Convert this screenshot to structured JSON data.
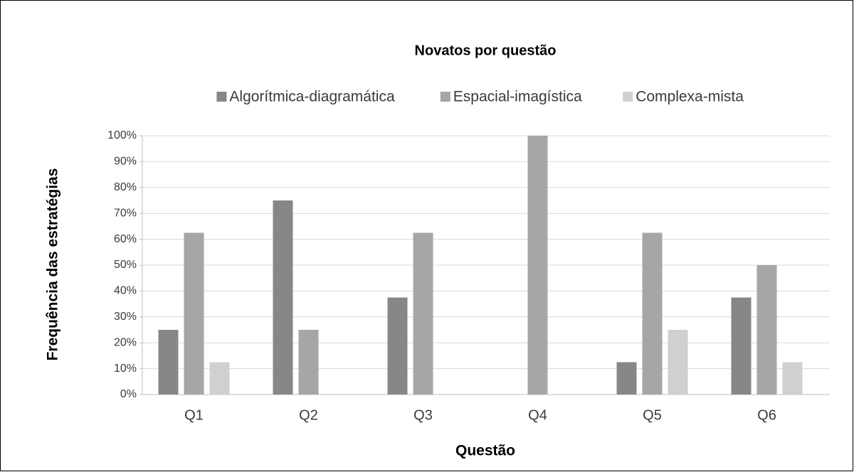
{
  "chart_data": {
    "type": "bar",
    "title": "Novatos por questão",
    "x_label": "Questão",
    "y_label": "Frequência das estratégias",
    "categories": [
      "Q1",
      "Q2",
      "Q3",
      "Q4",
      "Q5",
      "Q6"
    ],
    "series": [
      {
        "name": "Algorítmica-diagramática",
        "color": "#878787",
        "values": [
          25,
          75,
          37.5,
          0,
          12.5,
          37.5
        ]
      },
      {
        "name": "Espacial-imagística",
        "color": "#a6a6a6",
        "values": [
          62.5,
          25,
          62.5,
          100,
          62.5,
          50
        ]
      },
      {
        "name": "Complexa-mista",
        "color": "#d0d0d0",
        "values": [
          12.5,
          0,
          0,
          0,
          25,
          12.5
        ]
      }
    ],
    "ylim": [
      0,
      100
    ],
    "yticks": [
      {
        "value": 0,
        "label": "0%"
      },
      {
        "value": 10,
        "label": "10%"
      },
      {
        "value": 20,
        "label": "20%"
      },
      {
        "value": 30,
        "label": "30%"
      },
      {
        "value": 40,
        "label": "40%"
      },
      {
        "value": 50,
        "label": "50%"
      },
      {
        "value": 60,
        "label": "60%"
      },
      {
        "value": 70,
        "label": "70%"
      },
      {
        "value": 80,
        "label": "80%"
      },
      {
        "value": 90,
        "label": "90%"
      },
      {
        "value": 100,
        "label": "100%"
      }
    ],
    "grid": true,
    "legend": "top"
  }
}
